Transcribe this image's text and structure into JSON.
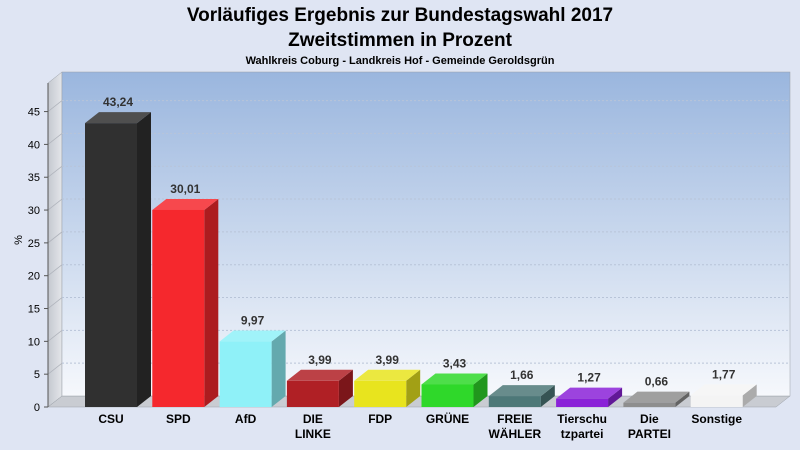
{
  "chart_data": {
    "type": "bar",
    "title": "Vorläufiges Ergebnis zur Bundestagswahl 2017",
    "subtitle": "Zweitstimmen in Prozent",
    "subtitle2": "Wahlkreis Coburg - Landkreis Hof - Gemeinde Geroldsgrün",
    "ylabel": "%",
    "ylim": [
      0,
      49
    ],
    "yticks": [
      0,
      5,
      10,
      15,
      20,
      25,
      30,
      35,
      40,
      45
    ],
    "grid": true,
    "categories": [
      [
        "CSU"
      ],
      [
        "SPD"
      ],
      [
        "AfD"
      ],
      [
        "DIE",
        "LINKE"
      ],
      [
        "FDP"
      ],
      [
        "GRÜNE"
      ],
      [
        "FREIE",
        "WÄHLER"
      ],
      [
        "Tierschu",
        "tzpartei"
      ],
      [
        "Die",
        "PARTEI"
      ],
      [
        "Sonstige"
      ]
    ],
    "values": [
      43.24,
      30.01,
      9.97,
      3.99,
      3.99,
      3.43,
      1.66,
      1.27,
      0.66,
      1.77
    ],
    "value_labels": [
      "43,24",
      "30,01",
      "9,97",
      "3,99",
      "3,99",
      "3,43",
      "1,66",
      "1,27",
      "0,66",
      "1,77"
    ],
    "colors": [
      "#303030",
      "#f5282d",
      "#8ff1f8",
      "#b02025",
      "#e8e41e",
      "#2fd82a",
      "#4d7878",
      "#8a22d8",
      "#8e8e8e",
      "#f4f4f4"
    ]
  }
}
